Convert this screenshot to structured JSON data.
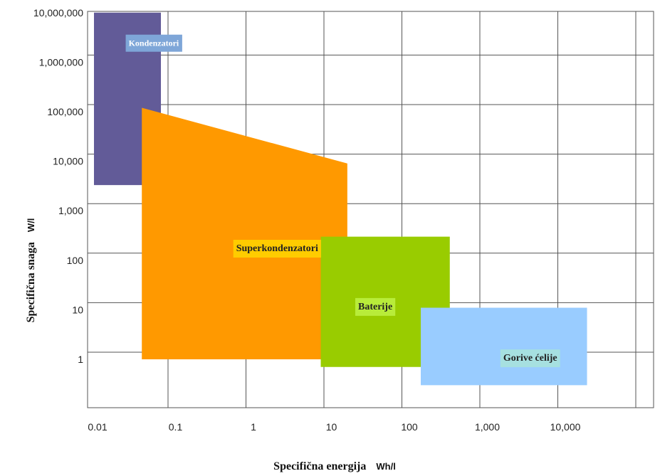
{
  "chart_data": {
    "type": "area",
    "title": "",
    "x_scale": "log",
    "y_scale": "log",
    "xlabel": "Specifična energija",
    "xunit": "Wh/l",
    "ylabel": "Specifična snaga",
    "yunit": "W/l",
    "xlim": [
      0.01,
      10000
    ],
    "ylim": [
      1,
      10000000
    ],
    "grid": true,
    "x_ticks": [
      {
        "value": 0.01,
        "label": "0.01"
      },
      {
        "value": 0.1,
        "label": "0.1"
      },
      {
        "value": 1,
        "label": "1"
      },
      {
        "value": 10,
        "label": "10"
      },
      {
        "value": 100,
        "label": "100"
      },
      {
        "value": 1000,
        "label": "1,000"
      },
      {
        "value": 10000,
        "label": "10,000"
      }
    ],
    "y_ticks": [
      {
        "value": 1,
        "label": "1"
      },
      {
        "value": 10,
        "label": "10"
      },
      {
        "value": 100,
        "label": "100"
      },
      {
        "value": 1000,
        "label": "1,000"
      },
      {
        "value": 10000,
        "label": "10,000"
      },
      {
        "value": 100000,
        "label": "100,000"
      },
      {
        "value": 1000000,
        "label": "1,000,000"
      },
      {
        "value": 10000000,
        "label": "10,000,000"
      }
    ],
    "regions": [
      {
        "name": "Kondenzatori",
        "color": "#625b98",
        "label_bg": "#7ea6d8",
        "label_at": [
          0.025,
          2500000
        ],
        "polygon": [
          [
            0.009,
            3300
          ],
          [
            0.065,
            3300
          ],
          [
            0.065,
            10000000
          ],
          [
            0.009,
            10000000
          ]
        ]
      },
      {
        "name": "Superkondenzatori",
        "color": "#ff9900",
        "label_bg": "#ffcc00",
        "label_at": [
          0.6,
          180
        ],
        "polygon": [
          [
            0.037,
            1
          ],
          [
            16,
            1
          ],
          [
            16,
            9000
          ],
          [
            0.037,
            120000
          ]
        ]
      },
      {
        "name": "Baterije",
        "color": "#99cc00",
        "label_bg": "#b8ec3a",
        "label_at": [
          22,
          12
        ],
        "polygon": [
          [
            7.3,
            0.7
          ],
          [
            330,
            0.7
          ],
          [
            330,
            300
          ],
          [
            7.3,
            300
          ]
        ]
      },
      {
        "name": "Gorive ćelije",
        "color": "#99ccff",
        "label_bg": "#a6e0e0",
        "label_at": [
          1600,
          1.1
        ],
        "polygon": [
          [
            140,
            0.3
          ],
          [
            19000,
            0.3
          ],
          [
            19000,
            11
          ],
          [
            140,
            11
          ]
        ]
      }
    ]
  }
}
